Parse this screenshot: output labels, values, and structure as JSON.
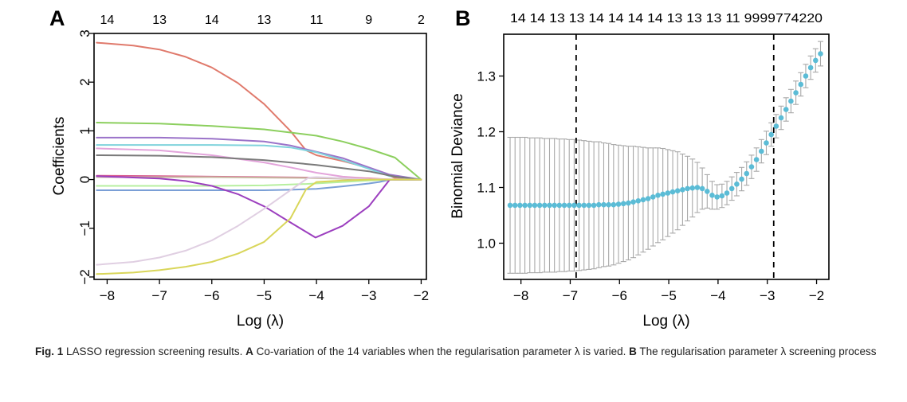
{
  "chart_data": [
    {
      "panel": "A",
      "type": "line",
      "xlabel": "Log (λ)",
      "ylabel": "Coefficients",
      "xlim": [
        -8.25,
        -1.9
      ],
      "ylim": [
        -2.05,
        3.0
      ],
      "x_ticks": [
        -8,
        -7,
        -6,
        -5,
        -4,
        -3,
        -2
      ],
      "x_tick_labels": [
        "−8",
        "−7",
        "−6",
        "−5",
        "−4",
        "−3",
        "−2"
      ],
      "y_ticks": [
        -2,
        -1,
        0,
        1,
        2,
        3
      ],
      "y_tick_labels": [
        "−2",
        "−1",
        "0",
        "1",
        "2",
        "3"
      ],
      "top_axis": {
        "x": [
          -8,
          -7,
          -6,
          -5,
          -4,
          -3,
          -2
        ],
        "labels": [
          "14",
          "13",
          "14",
          "13",
          "11",
          "9",
          "2"
        ]
      },
      "grid": false,
      "series": [
        {
          "color": "#e07a6c",
          "x": [
            -8.2,
            -7.5,
            -7,
            -6.5,
            -6,
            -5.5,
            -5,
            -4.5,
            -4.2,
            -4,
            -3.5,
            -3,
            -2.6,
            -2.5,
            -2.0
          ],
          "y": [
            2.81,
            2.75,
            2.67,
            2.52,
            2.3,
            1.98,
            1.55,
            1.0,
            0.6,
            0.5,
            0.38,
            0.24,
            0.08,
            0.03,
            0.0
          ]
        },
        {
          "color": "#8ccf5e",
          "x": [
            -8.2,
            -7,
            -6,
            -5,
            -4,
            -3.5,
            -3,
            -2.5,
            -2.0
          ],
          "y": [
            1.17,
            1.15,
            1.1,
            1.03,
            0.9,
            0.78,
            0.63,
            0.45,
            0.0
          ]
        },
        {
          "color": "#9b73c9",
          "x": [
            -8.2,
            -7,
            -6,
            -5,
            -4.5,
            -4,
            -3.5,
            -3,
            -2.6,
            -2.0
          ],
          "y": [
            0.86,
            0.86,
            0.84,
            0.78,
            0.7,
            0.57,
            0.44,
            0.25,
            0.1,
            0.0
          ]
        },
        {
          "color": "#7fd3dc",
          "x": [
            -8.2,
            -6,
            -5,
            -4.5,
            -4,
            -3.5,
            -3,
            -2.6,
            -2.0
          ],
          "y": [
            0.71,
            0.71,
            0.7,
            0.66,
            0.56,
            0.4,
            0.22,
            0.07,
            0.0
          ]
        },
        {
          "color": "#e3a4db",
          "x": [
            -8.2,
            -7,
            -6,
            -5,
            -4.5,
            -4,
            -3.5,
            -3,
            -2.6,
            -2.0
          ],
          "y": [
            0.64,
            0.6,
            0.5,
            0.35,
            0.25,
            0.14,
            0.06,
            0.02,
            0.0,
            0.0
          ]
        },
        {
          "color": "#7a7a7a",
          "x": [
            -8.2,
            -7,
            -6,
            -5,
            -4,
            -3,
            -2.5,
            -2.0
          ],
          "y": [
            0.5,
            0.49,
            0.46,
            0.4,
            0.3,
            0.17,
            0.06,
            0.0
          ]
        },
        {
          "color": "#d95d8f",
          "x": [
            -8.2,
            -7,
            -6,
            -5,
            -4,
            -3,
            -2.5,
            -2.0
          ],
          "y": [
            0.08,
            0.07,
            0.06,
            0.05,
            0.04,
            0.02,
            0.0,
            0.0
          ]
        },
        {
          "color": "#c7b8a0",
          "x": [
            -8.2,
            -6,
            -5,
            -4,
            -3.2,
            -3,
            -2.5,
            -2.0
          ],
          "y": [
            0.05,
            0.05,
            0.04,
            0.03,
            0.01,
            0.0,
            0.0,
            0.0
          ]
        },
        {
          "color": "#b7ef9f",
          "x": [
            -8.2,
            -6,
            -5,
            -4.2,
            -3.5,
            -3,
            -2.6,
            -2.0
          ],
          "y": [
            -0.13,
            -0.13,
            -0.12,
            -0.09,
            -0.05,
            -0.02,
            0.0,
            0.0
          ]
        },
        {
          "color": "#7a9fd6",
          "x": [
            -8.2,
            -6,
            -5,
            -4.5,
            -4,
            -3.5,
            -3,
            -2.8,
            -2.6,
            -2.0
          ],
          "y": [
            -0.22,
            -0.22,
            -0.22,
            -0.21,
            -0.19,
            -0.14,
            -0.08,
            -0.05,
            0.0,
            0.0
          ]
        },
        {
          "color": "#9c3fbf",
          "x": [
            -8.2,
            -7,
            -6.5,
            -6,
            -5.5,
            -5,
            -4.5,
            -4.02,
            -3.5,
            -3,
            -2.6,
            -2.5,
            -2.0
          ],
          "y": [
            0.07,
            0.02,
            -0.03,
            -0.13,
            -0.3,
            -0.55,
            -0.88,
            -1.19,
            -0.95,
            -0.55,
            0.0,
            0.0,
            0.0
          ]
        },
        {
          "color": "#e0cfe2",
          "x": [
            -8.2,
            -7.5,
            -7,
            -6.5,
            -6,
            -5.5,
            -5,
            -4.5,
            -4.15,
            -4,
            -3.5,
            -3,
            -2.0
          ],
          "y": [
            -1.75,
            -1.69,
            -1.6,
            -1.46,
            -1.25,
            -0.95,
            -0.6,
            -0.22,
            0.04,
            0.05,
            0.03,
            0.01,
            0.0
          ]
        },
        {
          "color": "#d9d65a",
          "x": [
            -8.2,
            -7.5,
            -7,
            -6.5,
            -6,
            -5.5,
            -5,
            -4.5,
            -4.2,
            -4,
            -3.5,
            -3,
            -2.0
          ],
          "y": [
            -1.94,
            -1.91,
            -1.86,
            -1.79,
            -1.69,
            -1.52,
            -1.28,
            -0.8,
            -0.2,
            -0.05,
            -0.02,
            0.0,
            0.0
          ]
        }
      ]
    },
    {
      "panel": "B",
      "type": "scatter",
      "xlabel": "Log (λ)",
      "ylabel": "Binomial Deviance",
      "xlim": [
        -8.35,
        -1.75
      ],
      "ylim": [
        0.935,
        1.375
      ],
      "x_ticks": [
        -8,
        -7,
        -6,
        -5,
        -4,
        -3,
        -2
      ],
      "x_tick_labels": [
        "−8",
        "−7",
        "−6",
        "−5",
        "−4",
        "−3",
        "−2"
      ],
      "y_ticks": [
        1.0,
        1.1,
        1.2,
        1.3
      ],
      "y_tick_labels": [
        "1.0",
        "1.1",
        "1.2",
        "1.3"
      ],
      "top_axis_text": "14 14 13 13 14 14 14 14 13 13 13 11 9999774220",
      "grid": false,
      "vlines": [
        -6.88,
        -2.87
      ],
      "point_color": "#5bbcd6",
      "errorbar_color": "#a8a8a8",
      "x": [
        -8.22,
        -8.12,
        -8.02,
        -7.92,
        -7.82,
        -7.72,
        -7.62,
        -7.52,
        -7.42,
        -7.32,
        -7.22,
        -7.12,
        -7.02,
        -6.92,
        -6.82,
        -6.72,
        -6.62,
        -6.52,
        -6.42,
        -6.32,
        -6.22,
        -6.12,
        -6.02,
        -5.92,
        -5.82,
        -5.72,
        -5.62,
        -5.52,
        -5.42,
        -5.32,
        -5.22,
        -5.12,
        -5.02,
        -4.92,
        -4.82,
        -4.72,
        -4.62,
        -4.52,
        -4.42,
        -4.32,
        -4.22,
        -4.12,
        -4.02,
        -3.92,
        -3.82,
        -3.72,
        -3.62,
        -3.52,
        -3.42,
        -3.32,
        -3.22,
        -3.12,
        -3.02,
        -2.92,
        -2.82,
        -2.72,
        -2.62,
        -2.52,
        -2.42,
        -2.32,
        -2.22,
        -2.12,
        -2.02,
        -1.92
      ],
      "y": [
        1.068,
        1.068,
        1.068,
        1.068,
        1.068,
        1.068,
        1.068,
        1.068,
        1.068,
        1.068,
        1.068,
        1.068,
        1.068,
        1.068,
        1.068,
        1.068,
        1.068,
        1.068,
        1.069,
        1.069,
        1.069,
        1.069,
        1.07,
        1.071,
        1.072,
        1.074,
        1.076,
        1.078,
        1.08,
        1.083,
        1.086,
        1.088,
        1.09,
        1.092,
        1.094,
        1.096,
        1.098,
        1.099,
        1.1,
        1.098,
        1.093,
        1.086,
        1.083,
        1.085,
        1.09,
        1.098,
        1.106,
        1.115,
        1.125,
        1.137,
        1.15,
        1.165,
        1.18,
        1.195,
        1.21,
        1.225,
        1.24,
        1.255,
        1.27,
        1.285,
        1.3,
        1.315,
        1.328,
        1.34
      ],
      "err": [
        0.122,
        0.122,
        0.122,
        0.122,
        0.121,
        0.121,
        0.121,
        0.12,
        0.12,
        0.12,
        0.119,
        0.119,
        0.118,
        0.118,
        0.117,
        0.116,
        0.115,
        0.114,
        0.113,
        0.111,
        0.11,
        0.108,
        0.106,
        0.104,
        0.102,
        0.1,
        0.097,
        0.094,
        0.091,
        0.088,
        0.085,
        0.082,
        0.078,
        0.074,
        0.07,
        0.064,
        0.058,
        0.052,
        0.045,
        0.037,
        0.03,
        0.025,
        0.022,
        0.021,
        0.021,
        0.021,
        0.021,
        0.021,
        0.021,
        0.021,
        0.021,
        0.021,
        0.021,
        0.021,
        0.021,
        0.021,
        0.021,
        0.021,
        0.021,
        0.021,
        0.021,
        0.021,
        0.021,
        0.022
      ]
    }
  ],
  "figure": {
    "panel_a_label": "A",
    "panel_b_label": "B"
  },
  "caption": {
    "label": "Fig. 1",
    "part1": " LASSO regression screening results. ",
    "a_label": "A",
    "part2": " Co-variation of the 14 variables when the regularisation parameter λ is varied. ",
    "b_label": "B",
    "part3": " The regularisation parameter λ screening process"
  }
}
